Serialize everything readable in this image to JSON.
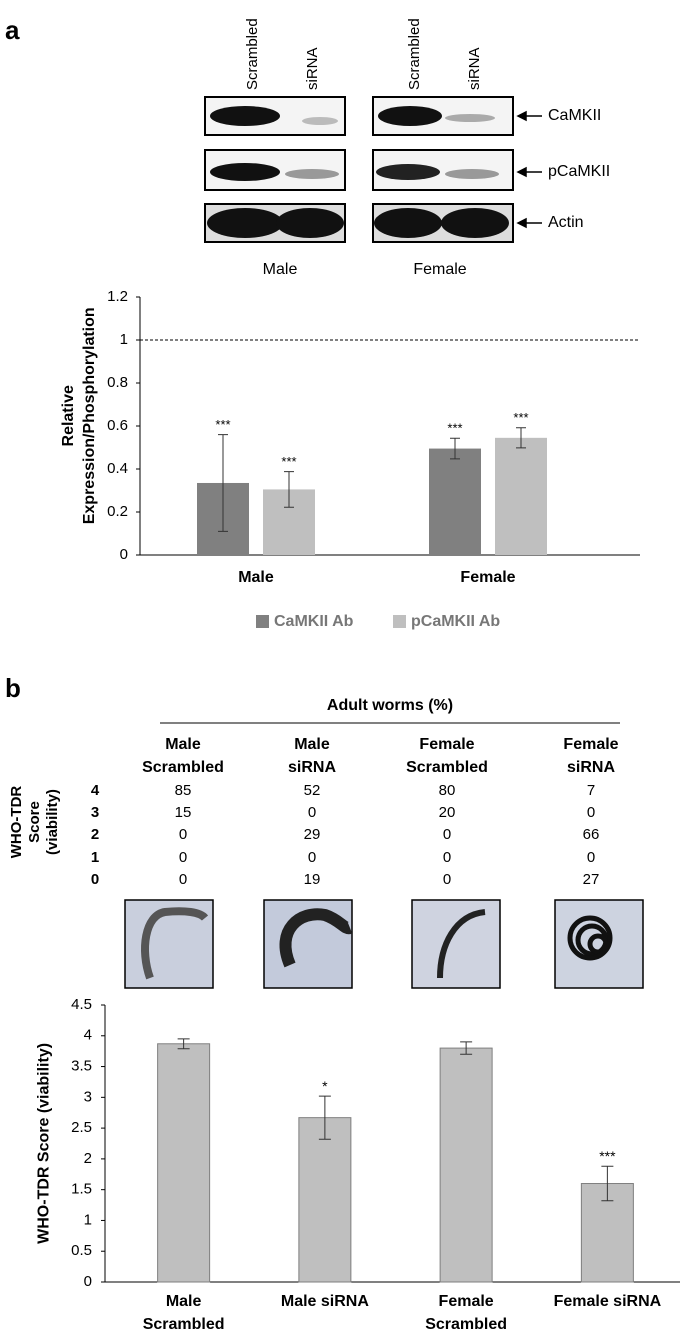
{
  "panel_labels": [
    "a",
    "b"
  ],
  "blot": {
    "lanes": [
      "Scrambled",
      "siRNA",
      "Scrambled",
      "siRNA"
    ],
    "proteins": [
      "CaMKII",
      "pCaMKII",
      "Actin"
    ],
    "groups": [
      "Male",
      "Female"
    ]
  },
  "table": {
    "title": "Adult worms (%)",
    "row_header": "WHO-TDR\nScore\n(viability)",
    "columns": [
      "Male\nScrambled",
      "Male\nsiRNA",
      "Female\nScrambled",
      "Female\nsiRNA"
    ],
    "row_labels": [
      4,
      3,
      2,
      1,
      0
    ],
    "rows": [
      [
        85,
        52,
        80,
        7
      ],
      [
        15,
        0,
        20,
        0
      ],
      [
        0,
        29,
        0,
        66
      ],
      [
        0,
        0,
        0,
        0
      ],
      [
        0,
        19,
        0,
        27
      ]
    ]
  },
  "chart_data": [
    {
      "type": "grouped-bar",
      "y_label": "Relative\nExpression/Phosphorylation",
      "categories": [
        "Male",
        "Female"
      ],
      "series": [
        {
          "name": "CaMKII Ab",
          "color": "#808080",
          "values": [
            0.335,
            0.495
          ],
          "errors": [
            0.225,
            0.048
          ],
          "significance": [
            "***",
            "***"
          ]
        },
        {
          "name": "pCaMKII Ab",
          "color": "#bfbfbf",
          "values": [
            0.305,
            0.545
          ],
          "errors": [
            0.083,
            0.047
          ],
          "significance": [
            "***",
            "***"
          ]
        }
      ],
      "reference_line": 1,
      "ylim": [
        0,
        1.2
      ],
      "yticks": [
        0,
        0.2,
        0.4,
        0.6,
        0.8,
        1,
        1.2
      ],
      "legend": "bottom"
    },
    {
      "type": "bar",
      "y_label": "WHO-TDR Score (viability)",
      "categories": [
        "Male\nScrambled",
        "Male siRNA",
        "Female\nScrambled",
        "Female siRNA"
      ],
      "values": [
        3.87,
        2.67,
        3.8,
        1.6
      ],
      "errors": [
        0.08,
        0.35,
        0.1,
        0.28
      ],
      "significance": [
        null,
        "*",
        null,
        "***"
      ],
      "color": "#bfbfbf",
      "ylim": [
        0,
        4.5
      ],
      "yticks": [
        0,
        0.5,
        1,
        1.5,
        2,
        2.5,
        3,
        3.5,
        4,
        4.5
      ]
    }
  ]
}
